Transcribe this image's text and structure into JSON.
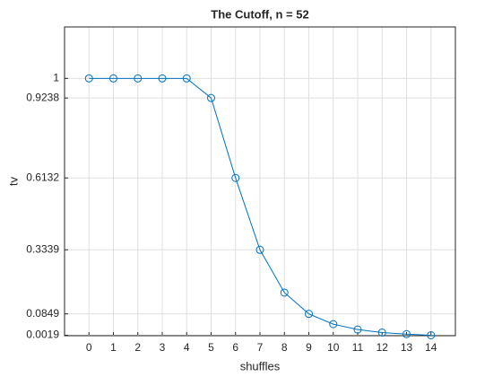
{
  "chart_data": {
    "type": "line",
    "title": "The Cutoff, n = 52",
    "x_label": "shuffles",
    "y_label": "tv",
    "x": [
      0,
      1,
      2,
      3,
      4,
      5,
      6,
      7,
      8,
      9,
      10,
      11,
      12,
      13,
      14
    ],
    "series": [
      {
        "color": "#0072bd",
        "values": [
          1,
          1,
          1,
          1,
          1,
          0.9238,
          0.6132,
          0.3339,
          0.1675,
          0.0849,
          0.045,
          0.024,
          0.0124,
          0.0061,
          0.0019
        ]
      }
    ],
    "xlim": [
      -1,
      15
    ],
    "xticks": [
      0,
      1,
      2,
      3,
      4,
      5,
      6,
      7,
      8,
      9,
      10,
      11,
      12,
      13,
      14
    ],
    "ylim": [
      0,
      1.2
    ],
    "yticks": [
      0.0019,
      0.0849,
      0.3339,
      0.6132,
      0.9238,
      1
    ],
    "grid": true
  }
}
